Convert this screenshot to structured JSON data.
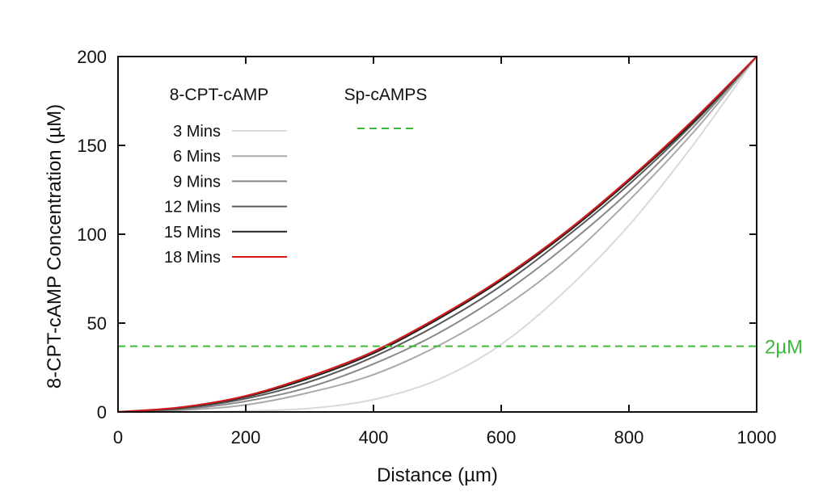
{
  "chart_data": {
    "type": "line",
    "title": "",
    "xlabel": "Distance (µm)",
    "ylabel": "8-CPT-cAMP Concentration (µM)",
    "xlim": [
      0,
      1000
    ],
    "ylim": [
      0,
      200
    ],
    "x_ticks": [
      0,
      200,
      400,
      600,
      800,
      1000
    ],
    "y_ticks": [
      0,
      50,
      100,
      150,
      200
    ],
    "x_tick_labels": [
      "0",
      "200",
      "400",
      "600",
      "800",
      "1000"
    ],
    "y_tick_labels": [
      "0",
      "50",
      "100",
      "150",
      "200"
    ],
    "grid": false,
    "legend_position": "top-left",
    "legend_group_titles": [
      "8-CPT-cAMP",
      "Sp-cAMPS"
    ],
    "x": [
      0,
      100,
      200,
      300,
      400,
      500,
      600,
      700,
      800,
      900,
      1000
    ],
    "series": [
      {
        "name": "3 Mins",
        "color": "#d9d9d9",
        "values": [
          0,
          0,
          0.5,
          2,
          7,
          18,
          38,
          68,
          105,
          150,
          200
        ]
      },
      {
        "name": "6 Mins",
        "color": "#aaaaaa",
        "values": [
          0,
          1,
          4,
          11,
          21,
          37,
          58,
          85,
          119,
          157,
          200
        ]
      },
      {
        "name": "9 Mins",
        "color": "#888888",
        "values": [
          0,
          1.5,
          6,
          14,
          27,
          44,
          66,
          93,
          124,
          160,
          200
        ]
      },
      {
        "name": "12 Mins",
        "color": "#5a5a5a",
        "values": [
          0,
          2,
          7.5,
          17,
          31,
          49,
          71,
          98,
          128,
          162,
          200
        ]
      },
      {
        "name": "15 Mins",
        "color": "#222222",
        "values": [
          0,
          2.5,
          8.5,
          19,
          33,
          52,
          74,
          100,
          130,
          163,
          200
        ]
      },
      {
        "name": "18 Mins",
        "color": "#d11a1a",
        "values": [
          0,
          2.7,
          9,
          20,
          34,
          53,
          75,
          101,
          131,
          164,
          200
        ]
      }
    ],
    "reference_lines": [
      {
        "name": "Sp-cAMPS",
        "value": 37,
        "color": "#3cb83c",
        "label": "2µM"
      }
    ]
  }
}
